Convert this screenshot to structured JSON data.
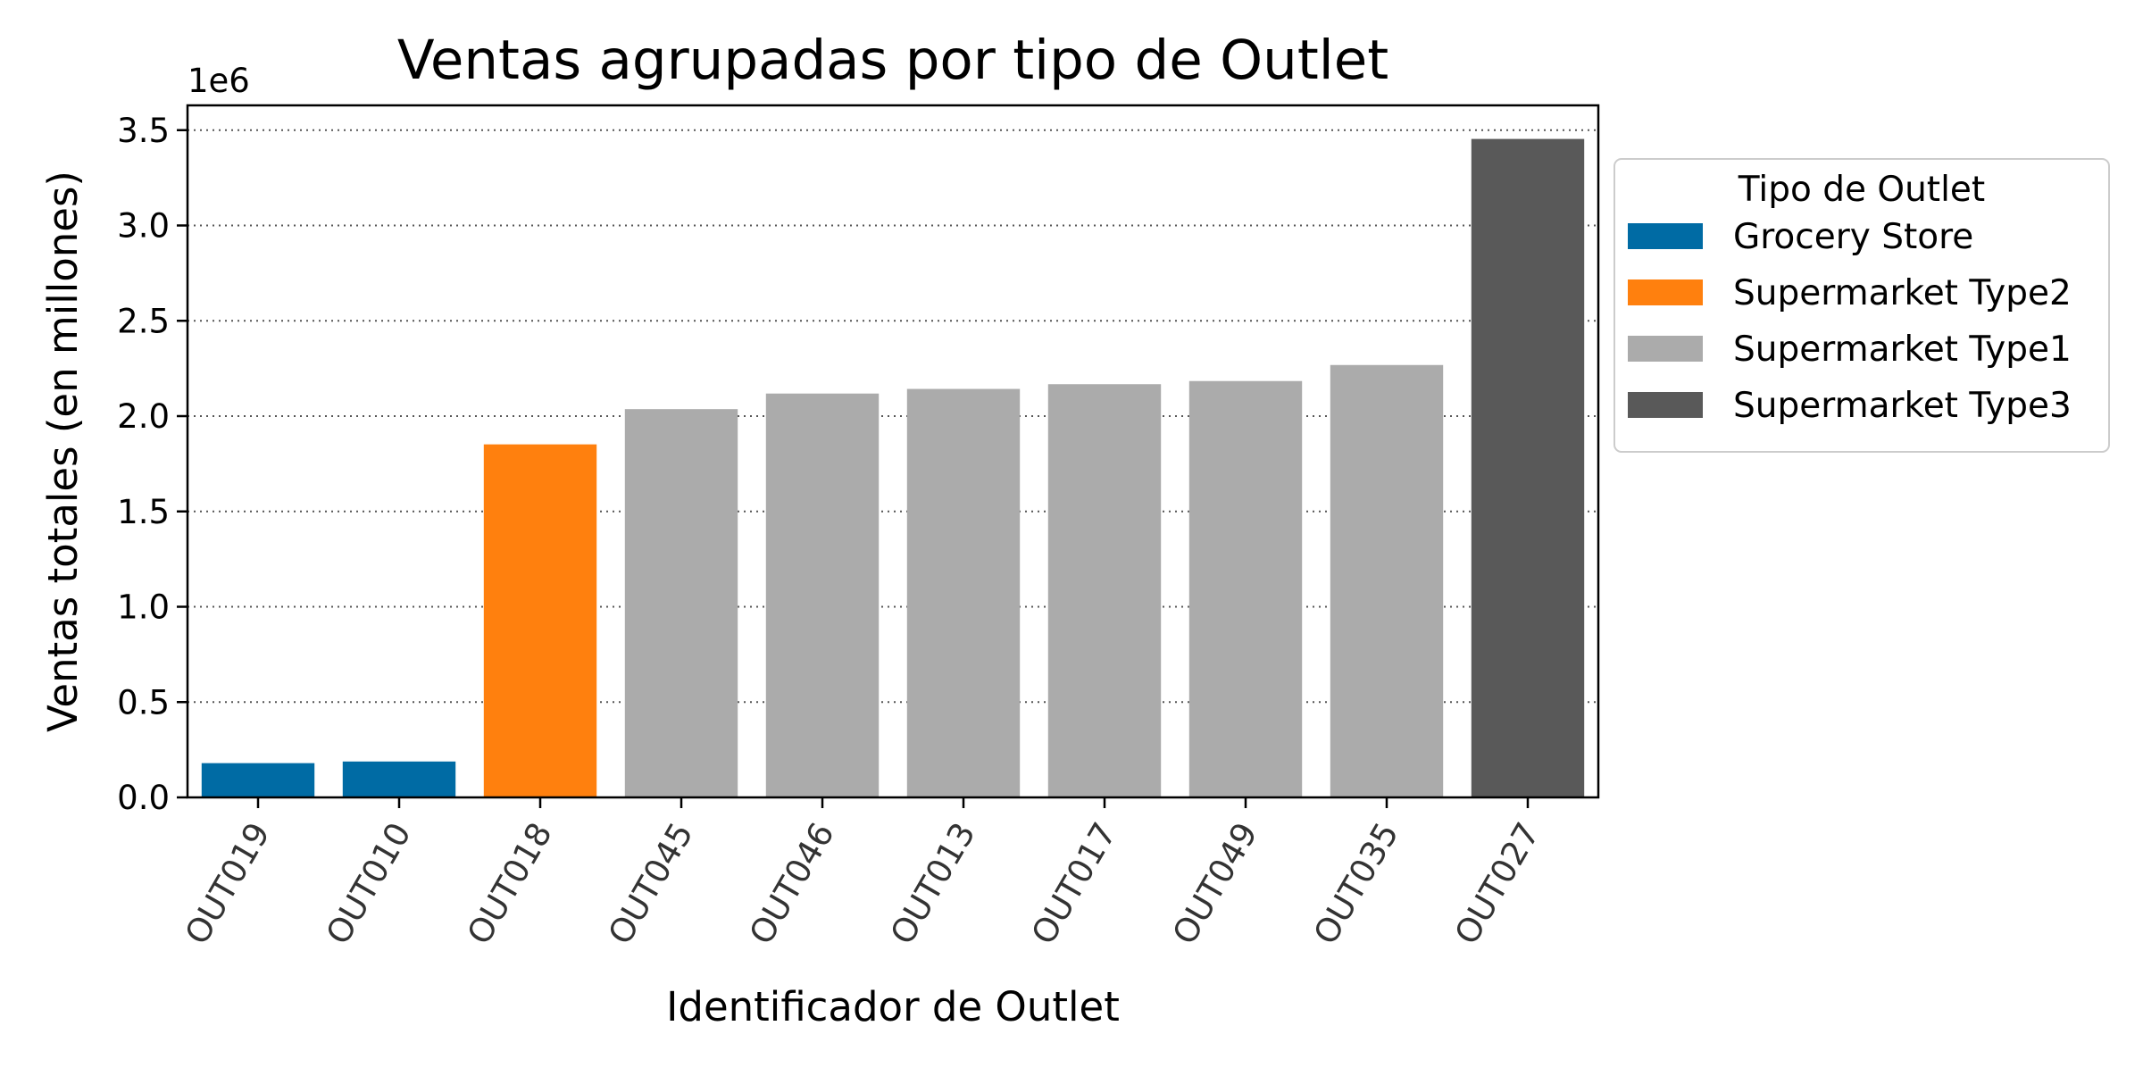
{
  "chart_data": {
    "type": "bar",
    "title": "Ventas agrupadas por tipo de Outlet",
    "xlabel": "Identificador de Outlet",
    "ylabel": "Ventas totales (en millones)",
    "y_offset_label": "1e6",
    "ylim": [
      0,
      3630000
    ],
    "y_ticks": [
      {
        "value": 0,
        "label": "0.0"
      },
      {
        "value": 500000,
        "label": "0.5"
      },
      {
        "value": 1000000,
        "label": "1.0"
      },
      {
        "value": 1500000,
        "label": "1.5"
      },
      {
        "value": 2000000,
        "label": "2.0"
      },
      {
        "value": 2500000,
        "label": "2.5"
      },
      {
        "value": 3000000,
        "label": "3.0"
      },
      {
        "value": 3500000,
        "label": "3.5"
      }
    ],
    "grid": "horizontal dotted",
    "categories": [
      "OUT019",
      "OUT010",
      "OUT018",
      "OUT045",
      "OUT046",
      "OUT013",
      "OUT017",
      "OUT049",
      "OUT035",
      "OUT027"
    ],
    "values": [
      179700,
      188300,
      1851800,
      2036700,
      2118400,
      2142700,
      2167500,
      2183900,
      2268100,
      3453900
    ],
    "groups": [
      "Grocery Store",
      "Grocery Store",
      "Supermarket Type2",
      "Supermarket Type1",
      "Supermarket Type1",
      "Supermarket Type1",
      "Supermarket Type1",
      "Supermarket Type1",
      "Supermarket Type1",
      "Supermarket Type3"
    ],
    "legend": {
      "title": "Tipo de Outlet",
      "placement": "outside-right",
      "entries": [
        {
          "label": "Grocery Store",
          "color": "#006BA4"
        },
        {
          "label": "Supermarket Type2",
          "color": "#FF800E"
        },
        {
          "label": "Supermarket Type1",
          "color": "#ABABAB"
        },
        {
          "label": "Supermarket Type3",
          "color": "#595959"
        }
      ]
    }
  }
}
